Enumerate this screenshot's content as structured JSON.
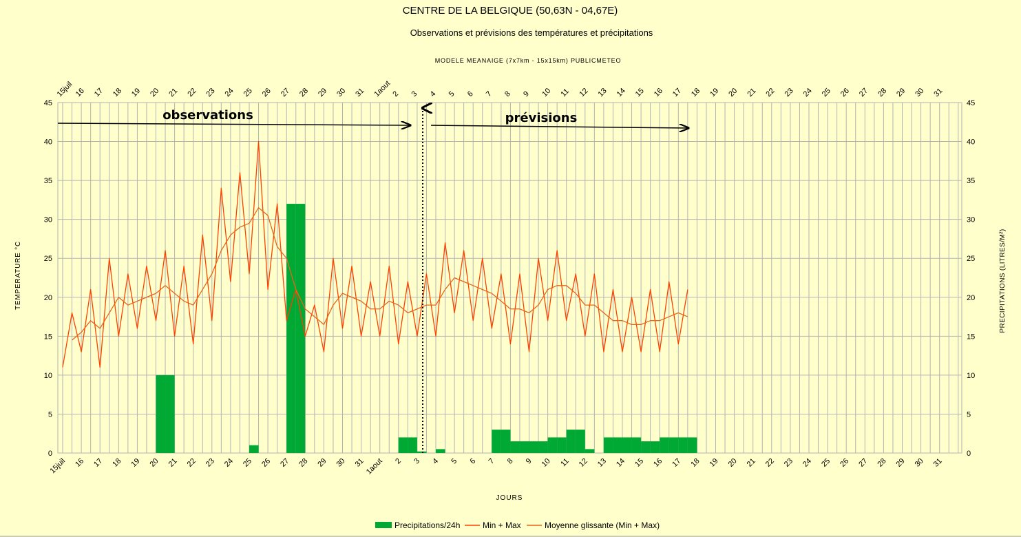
{
  "chart_data": {
    "type": "bar",
    "title": "CENTRE DE LA BELGIQUE (50,63N - 04,67E)",
    "subtitle": "Observations et prévisions des températures et précipitations",
    "model_label": "MODELE MEANAIGE (7x7km - 15x15km) PUBLICMETEO",
    "xlabel": "JOURS",
    "ylabel_left": "TEMPERATURE °C",
    "ylabel_right": "PRECIPITATIONS (LITRES/M²)",
    "ylim": [
      0,
      45
    ],
    "y_ticks": [
      "0",
      "5",
      "10",
      "15",
      "20",
      "25",
      "30",
      "35",
      "40",
      "45"
    ],
    "categories": [
      "15juil",
      "16",
      "17",
      "18",
      "19",
      "20",
      "21",
      "22",
      "23",
      "24",
      "25",
      "26",
      "27",
      "28",
      "29",
      "30",
      "31",
      "1aout",
      "2",
      "3",
      "4",
      "5",
      "6",
      "7",
      "8",
      "9",
      "10",
      "11",
      "12",
      "13",
      "14",
      "15",
      "16",
      "17",
      "18",
      "19",
      "20",
      "21",
      "22",
      "23",
      "24",
      "25",
      "26",
      "27",
      "28",
      "29",
      "30",
      "31"
    ],
    "annotations": {
      "observations": "observations",
      "previsions": "prévisions"
    },
    "series": [
      {
        "name": "Precipitations/24h",
        "type": "bar",
        "color": "#00a933",
        "x": [
          5,
          5.5,
          10,
          12,
          12.5,
          18,
          18.5,
          19,
          20,
          23,
          23.5,
          24,
          24.5,
          25,
          25.5,
          26,
          26.5,
          27,
          27.5,
          28,
          29,
          29.5,
          30,
          30.5,
          31,
          31.5,
          32,
          32.5,
          33,
          33.5
        ],
        "values": [
          10,
          10,
          1,
          32,
          32,
          2,
          2,
          0.2,
          0.5,
          3,
          3,
          1.5,
          1.5,
          1.5,
          1.5,
          2,
          2,
          3,
          3,
          0.5,
          2,
          2,
          2,
          2,
          1.5,
          1.5,
          2,
          2,
          2,
          2
        ]
      },
      {
        "name": "Min + Max",
        "type": "line",
        "color": "#ff4000",
        "x": [
          0,
          0.5,
          1,
          1.5,
          2,
          2.5,
          3,
          3.5,
          4,
          4.5,
          5,
          5.5,
          6,
          6.5,
          7,
          7.5,
          8,
          8.5,
          9,
          9.5,
          10,
          10.5,
          11,
          11.5,
          12,
          12.5,
          13,
          13.5,
          14,
          14.5,
          15,
          15.5,
          16,
          16.5,
          17,
          17.5,
          18,
          18.5,
          19,
          19.5,
          20,
          20.5,
          21,
          21.5,
          22,
          22.5,
          23,
          23.5,
          24,
          24.5,
          25,
          25.5,
          26,
          26.5,
          27,
          27.5,
          28,
          28.5,
          29,
          29.5,
          30,
          30.5,
          31,
          31.5,
          32,
          32.5,
          33,
          33.5
        ],
        "values": [
          11,
          18,
          13,
          21,
          11,
          25,
          15,
          23,
          16,
          24,
          17,
          26,
          15,
          24,
          14,
          28,
          17,
          34,
          22,
          36,
          23,
          40,
          21,
          32,
          17,
          21,
          15,
          19,
          13,
          25,
          16,
          24,
          15,
          22,
          15,
          24,
          14,
          22,
          15,
          23,
          15,
          27,
          18,
          26,
          17,
          25,
          16,
          23,
          14,
          23,
          13,
          25,
          17,
          26,
          17,
          23,
          15,
          23,
          13,
          21,
          13,
          20,
          13,
          21,
          13,
          22,
          14,
          21
        ]
      },
      {
        "name": "Moyenne glissante (Min + Max)",
        "type": "line",
        "color": "#e6661a",
        "x": [
          0.5,
          1,
          1.5,
          2,
          2.5,
          3,
          3.5,
          4,
          4.5,
          5,
          5.5,
          6,
          6.5,
          7,
          7.5,
          8,
          8.5,
          9,
          9.5,
          10,
          10.5,
          11,
          11.5,
          12,
          12.5,
          13,
          13.5,
          14,
          14.5,
          15,
          15.5,
          16,
          16.5,
          17,
          17.5,
          18,
          18.5,
          19,
          19.5,
          20,
          20.5,
          21,
          21.5,
          22,
          22.5,
          23,
          23.5,
          24,
          24.5,
          25,
          25.5,
          26,
          26.5,
          27,
          27.5,
          28,
          28.5,
          29,
          29.5,
          30,
          30.5,
          31,
          31.5,
          32,
          32.5,
          33,
          33.5
        ],
        "values": [
          14.5,
          15.5,
          17,
          16,
          18,
          20,
          19,
          19.5,
          20,
          20.5,
          21.5,
          20.5,
          19.5,
          19,
          21,
          23,
          26,
          28,
          29,
          29.5,
          31.5,
          30.5,
          26.5,
          25,
          21,
          18.5,
          17.5,
          16.5,
          19,
          20.5,
          20,
          19.5,
          18.5,
          18.5,
          19.5,
          19,
          18,
          18.5,
          19,
          19,
          21,
          22.5,
          22,
          21.5,
          21,
          20.5,
          19.5,
          18.5,
          18.5,
          18,
          19,
          21,
          21.5,
          21.5,
          20.5,
          19,
          19,
          18,
          17,
          17,
          16.5,
          16.5,
          17,
          17,
          17.5,
          18,
          17.5
        ]
      }
    ],
    "forecast_start_x": 19.3,
    "legend": {
      "position": "bottom",
      "entries": [
        "Precipitations/24h",
        "Min + Max",
        "Moyenne glissante (Min + Max)"
      ]
    },
    "grid": true
  }
}
